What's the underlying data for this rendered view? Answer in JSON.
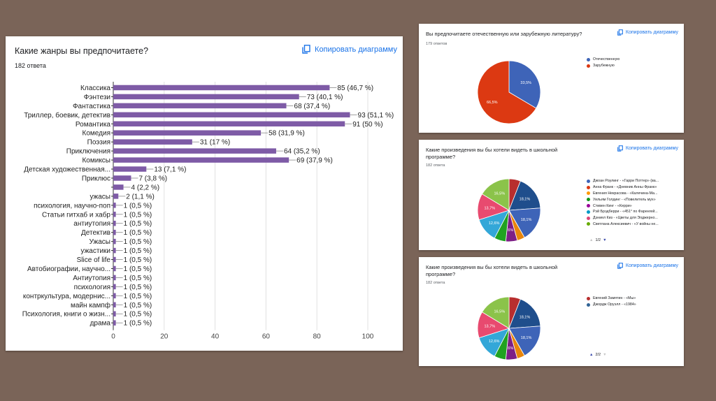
{
  "colors": {
    "bar": "#7e5ba6",
    "link": "#1a73e8",
    "pie_blue": "#3e64b8",
    "pie_red": "#dc3912",
    "palette": [
      "#1f4e8c",
      "#3e64b8",
      "#e84a6f",
      "#33a7d8",
      "#2b7bb9",
      "#7d1f86",
      "#21a221",
      "#8bc34a",
      "#dd4477",
      "#b2376e",
      "#dc3912"
    ]
  },
  "genres": {
    "title": "Какие жанры вы предпочитаете?",
    "count": "182 ответа",
    "copy_label": "Копировать диаграмму"
  },
  "lit": {
    "title": "Вы предпочитаете отечественную или зарубежную литературу?",
    "count": "179 ответов",
    "copy_label": "Копировать диаграмму",
    "legend": [
      {
        "label": "Отечественную",
        "color": "#3e64b8"
      },
      {
        "label": "Зарубежную",
        "color": "#dc3912"
      }
    ]
  },
  "works1": {
    "title_line1": "Какие произведения вы бы хотели видеть в школьной",
    "title_line2": "программе?",
    "count": "182 ответа",
    "copy_label": "Копировать диаграмму",
    "pager": "1/2",
    "legend": [
      {
        "label": "Джоан Роулинг - «Гарри Поттер» (ва...",
        "color": "#3e64b8"
      },
      {
        "label": "Анна Франк - «Дневник Анны Франк»",
        "color": "#dc3912"
      },
      {
        "label": "Евгения Некрасова - «Калечина-Ма...",
        "color": "#ff9900"
      },
      {
        "label": "Уильям Голдинг - «Повелитель мух»",
        "color": "#109618"
      },
      {
        "label": "Стивен Кинг - «Керри»",
        "color": "#990099"
      },
      {
        "label": "Рэй Брэдберри - «451° по Фаренгей...",
        "color": "#0099c6"
      },
      {
        "label": "Дэниел Киз - «Цветы для Элджерно...",
        "color": "#dd4477"
      },
      {
        "label": "Светлана Алексиевич - «У войны не...",
        "color": "#66aa00"
      }
    ]
  },
  "works2": {
    "title_line1": "Какие произведения вы бы хотели видеть в школьной",
    "title_line2": "программе?",
    "count": "182 ответа",
    "pager": "2/2",
    "copy_label": "Копировать диаграмму",
    "legend": [
      {
        "label": "Евгений Замятин - «Мы»",
        "color": "#b82e2e"
      },
      {
        "label": "Джордж Оруэлл - «1984»",
        "color": "#316395"
      }
    ]
  },
  "chart_data": [
    {
      "type": "bar",
      "orientation": "horizontal",
      "title": "Какие жанры вы предпочитаете?",
      "categories": [
        "Классика",
        "Фэнтези",
        "Фантастика",
        "Триллер, боевик, детектив",
        "Романтика",
        "Комедия",
        "Поэзия",
        "Приключения",
        "Комиксы",
        "Детская художественная...",
        "Приклюс",
        "",
        "ужасы",
        "психология, научно-поп",
        "Статьи гитхаб и хабр",
        "антиутопия",
        "Детектив",
        "Ужасы",
        "ужастики",
        "Slice of life",
        "Автобиографии, научно...",
        "Антиутопия",
        "психология",
        "контркультура, модернис...",
        "майн кампф",
        "Психология, книги о жизн...",
        "драма"
      ],
      "values": [
        85,
        73,
        68,
        93,
        91,
        58,
        31,
        64,
        69,
        13,
        7,
        4,
        2,
        1,
        1,
        1,
        1,
        1,
        1,
        1,
        1,
        1,
        1,
        1,
        1,
        1,
        1
      ],
      "labels": [
        "85 (46,7 %)",
        "73 (40,1 %)",
        "68 (37,4 %)",
        "93 (51,1 %)",
        "91 (50 %)",
        "58 (31,9 %)",
        "31 (17 %)",
        "64 (35,2 %)",
        "69 (37,9 %)",
        "13 (7,1 %)",
        "7 (3,8 %)",
        "4 (2,2 %)",
        "2 (1,1 %)",
        "1 (0,5 %)",
        "1 (0,5 %)",
        "1 (0,5 %)",
        "1 (0,5 %)",
        "1 (0,5 %)",
        "1 (0,5 %)",
        "1 (0,5 %)",
        "1 (0,5 %)",
        "1 (0,5 %)",
        "1 (0,5 %)",
        "1 (0,5 %)",
        "1 (0,5 %)",
        "1 (0,5 %)",
        "1 (0,5 %)"
      ],
      "xlim": [
        0,
        100
      ],
      "xticks": [
        0,
        20,
        40,
        60,
        80,
        100
      ],
      "grid": true
    },
    {
      "type": "pie",
      "title": "Вы предпочитаете отечественную или зарубежную литературу?",
      "slices": [
        {
          "name": "Отечественную",
          "value": 33.5,
          "label": "33,5%"
        },
        {
          "name": "Зарубежную",
          "value": 66.5,
          "label": "66,5%"
        }
      ]
    },
    {
      "type": "pie",
      "title": "Какие произведения вы бы хотели видеть в школьной программе?",
      "slices": [
        {
          "value": 6.0,
          "label": ""
        },
        {
          "value": 18.1,
          "label": "18,1%"
        },
        {
          "value": 18.1,
          "label": "18,1%"
        },
        {
          "value": 4.0,
          "label": ""
        },
        {
          "value": 6.0,
          "label": "6%"
        },
        {
          "value": 6.0,
          "label": ""
        },
        {
          "value": 12.6,
          "label": "12,6%"
        },
        {
          "value": 13.7,
          "label": "13,7%"
        },
        {
          "value": 16.5,
          "label": "16,5%"
        }
      ]
    },
    {
      "type": "pie",
      "title": "Какие произведения вы бы хотели видеть в школьной программе?",
      "slices": [
        {
          "value": 6.0,
          "label": ""
        },
        {
          "value": 18.1,
          "label": "18,1%"
        },
        {
          "value": 18.1,
          "label": "18,1%"
        },
        {
          "value": 4.0,
          "label": ""
        },
        {
          "value": 6.0,
          "label": "6%"
        },
        {
          "value": 6.0,
          "label": ""
        },
        {
          "value": 12.6,
          "label": "12,6%"
        },
        {
          "value": 13.7,
          "label": "13,7%"
        },
        {
          "value": 16.5,
          "label": "16,5%"
        }
      ]
    }
  ]
}
